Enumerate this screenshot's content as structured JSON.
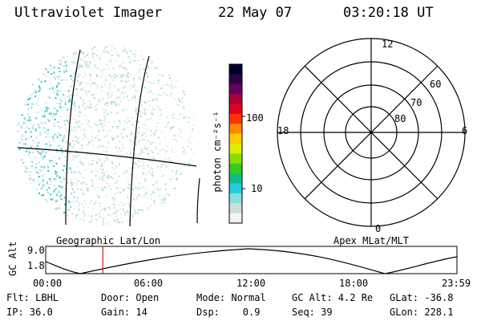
{
  "header": {
    "instrument": "Ultraviolet Imager",
    "date": "22 May 07",
    "time": "03:20:18 UT"
  },
  "map_labels": {
    "left": "Geographic Lat/Lon",
    "right": "Apex MLat/MLT"
  },
  "colorbar": {
    "label": "photon cm⁻²s⁻¹",
    "ticks": [
      "100",
      "10"
    ],
    "colors": [
      "#000033",
      "#330044",
      "#660066",
      "#aa0033",
      "#dd0022",
      "#ff3300",
      "#ff8800",
      "#ffcc00",
      "#ddee00",
      "#88dd00",
      "#33cc22",
      "#11bb88",
      "#22ccdd",
      "#88dddd",
      "#ccdddd",
      "#f4f4f4"
    ]
  },
  "polar": {
    "mlt_labels": [
      "12",
      "18",
      "6",
      "0"
    ],
    "lat_labels": [
      "60",
      "70",
      "80"
    ]
  },
  "altitude_plot": {
    "ylabel": "GC Alt",
    "y_ticks": [
      "9.0",
      "1.8"
    ],
    "x_ticks": [
      "00:00",
      "06:00",
      "12:00",
      "18:00",
      "23:59"
    ],
    "marker_time": "03:20",
    "marker_color": "#cc2222"
  },
  "info": {
    "flt": "Flt: LBHL",
    "ip": "IP: 36.0",
    "door": "Door: Open",
    "gain": "Gain: 14",
    "mode": "Mode: Normal",
    "dsp": "Dsp:    0.9",
    "gc_alt": "GC Alt: 4.2 Re",
    "seq": "Seq: 39",
    "glat": "GLat: -36.8",
    "glon": "GLon: 228.1"
  }
}
